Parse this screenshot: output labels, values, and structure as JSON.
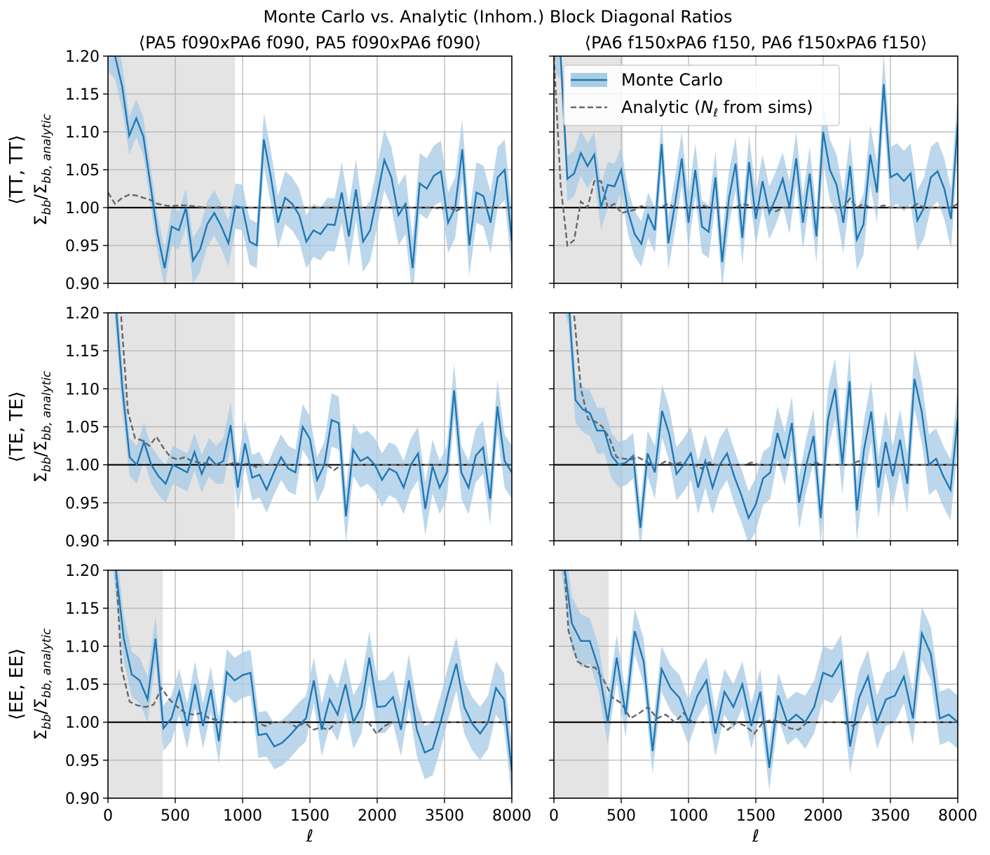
{
  "title": "Monte Carlo vs. Analytic (Inhom.) Block Diagonal Ratios",
  "columns": [
    {
      "title": "⟨PA5 f090xPA6 f090, PA5 f090xPA6 f090⟩"
    },
    {
      "title": "⟨PA6 f150xPA6 f150, PA6 f150xPA6 f150⟩"
    }
  ],
  "rows": [
    {
      "label_main": "⟨TT, TT⟩"
    },
    {
      "label_main": "⟨TE, TE⟩"
    },
    {
      "label_main": "⟨EE, EE⟩"
    }
  ],
  "ylabel": {
    "sigma": "Σ",
    "bb": "bb",
    "slash": "/",
    "sub": "bb, analytic"
  },
  "xlabel": "ℓ",
  "legend": {
    "mc_label": "Monte Carlo",
    "an_label_pre": "Analytic (",
    "an_N": "N",
    "an_sub": "ℓ",
    "an_label_post": " from sims)",
    "placement": "upper right of top-right panel"
  },
  "colors": {
    "mc_line": "#1f77b4",
    "mc_band": "#a9cce5",
    "analytic": "#666666",
    "shade": "#e4e4e4",
    "grid": "#b0b0b0"
  },
  "chart_data": {
    "type": "line",
    "x_ticks": [
      "0",
      "500",
      "1000",
      "1500",
      "2000",
      "3500",
      "8000"
    ],
    "y_ticks": [
      "0.90",
      "0.95",
      "1.00",
      "1.05",
      "1.10",
      "1.15",
      "1.20"
    ],
    "ylim": [
      0.9,
      1.2
    ],
    "xlim_index": [
      0,
      70
    ],
    "reference_line": 1.0,
    "panels": [
      {
        "name": "TT-PA5f090xPA6f090",
        "shade": [
          0,
          22
        ],
        "mc": [
          1.22,
          1.2,
          1.16,
          1.095,
          1.118,
          1.094,
          1.03,
          0.965,
          0.92,
          0.975,
          0.97,
          1.0,
          0.93,
          0.945,
          0.978,
          0.993,
          0.975,
          0.953,
          1.002,
          1.0,
          0.955,
          0.95,
          1.09,
          1.04,
          0.98,
          1.013,
          1.005,
          0.99,
          0.955,
          0.97,
          0.965,
          0.978,
          0.977,
          1.02,
          0.962,
          1.024,
          0.955,
          0.97,
          1.015,
          1.063,
          1.04,
          0.99,
          1.005,
          0.92,
          1.032,
          1.025,
          1.042,
          1.048,
          0.98,
          1.0,
          1.077,
          0.95,
          1.02,
          1.015,
          0.98,
          1.04,
          1.05,
          0.955
        ],
        "err": [
          0.04,
          0.03,
          0.03,
          0.025,
          0.025,
          0.025,
          0.025,
          0.025,
          0.025,
          0.025,
          0.025,
          0.025,
          0.03,
          0.03,
          0.03,
          0.03,
          0.03,
          0.03,
          0.03,
          0.03,
          0.03,
          0.03,
          0.035,
          0.035,
          0.035,
          0.035,
          0.035,
          0.035,
          0.035,
          0.035,
          0.035,
          0.035,
          0.035,
          0.04,
          0.04,
          0.04,
          0.04,
          0.04,
          0.04,
          0.04,
          0.04,
          0.04,
          0.04,
          0.04,
          0.04,
          0.04,
          0.04,
          0.04,
          0.04,
          0.04,
          0.04,
          0.04,
          0.04,
          0.04,
          0.04,
          0.04,
          0.04,
          0.04
        ],
        "analytic": [
          1.02,
          1.005,
          1.013,
          1.017,
          1.016,
          1.013,
          1.01,
          1.005,
          1.003,
          1.002,
          1.003,
          1.003,
          1.002,
          1.001,
          1.0,
          1.0,
          1.001,
          1.0,
          1.0,
          1.0,
          1.0,
          1.0,
          1.0,
          1.0,
          1.0,
          1.0,
          1.0,
          1.0,
          1.0,
          1.0,
          1.0,
          1.0,
          1.0,
          1.0,
          1.0,
          1.0,
          1.0,
          1.0,
          1.0,
          1.0,
          1.0,
          1.0,
          1.0,
          1.0,
          1.0,
          1.0,
          1.0,
          0.998,
          1.002,
          0.995,
          1.0,
          1.0,
          1.0,
          1.0,
          1.0,
          1.0,
          1.0,
          1.0
        ],
        "analytic_start": 0
      },
      {
        "name": "TT-PA6f150xPA6f150",
        "shade": [
          0,
          12
        ],
        "mc": [
          1.22,
          1.2,
          1.038,
          1.045,
          1.072,
          1.055,
          1.07,
          1.0,
          1.03,
          1.028,
          1.05,
          0.995,
          0.965,
          0.952,
          0.99,
          0.97,
          1.084,
          0.953,
          1.005,
          1.065,
          0.98,
          1.05,
          0.975,
          0.968,
          1.04,
          0.928,
          1.012,
          1.058,
          0.96,
          1.06,
          0.985,
          1.035,
          0.993,
          1.013,
          1.038,
          1.0,
          1.065,
          0.98,
          1.045,
          0.962,
          1.1,
          1.05,
          1.03,
          0.98,
          1.055,
          0.958,
          0.978,
          1.07,
          1.02,
          1.163,
          1.04,
          1.045,
          1.035,
          1.045,
          0.983,
          1.0,
          1.04,
          1.048,
          1.025,
          0.985,
          1.112
        ],
        "err": [
          0.04,
          0.03,
          0.03,
          0.03,
          0.03,
          0.03,
          0.03,
          0.03,
          0.03,
          0.03,
          0.03,
          0.03,
          0.03,
          0.03,
          0.03,
          0.03,
          0.035,
          0.035,
          0.035,
          0.035,
          0.035,
          0.035,
          0.035,
          0.035,
          0.035,
          0.035,
          0.035,
          0.035,
          0.035,
          0.035,
          0.035,
          0.035,
          0.035,
          0.035,
          0.035,
          0.035,
          0.035,
          0.035,
          0.035,
          0.035,
          0.04,
          0.04,
          0.04,
          0.04,
          0.04,
          0.04,
          0.04,
          0.04,
          0.04,
          0.04,
          0.04,
          0.04,
          0.04,
          0.04,
          0.04,
          0.04,
          0.04,
          0.04,
          0.04,
          0.04,
          0.04
        ],
        "analytic": [
          1.2,
          1.03,
          0.95,
          0.957,
          1.008,
          1.0,
          1.035,
          1.035,
          1.0,
          1.005,
          0.993,
          0.995,
          0.997,
          1.002,
          1.0,
          1.0,
          1.001,
          1.005,
          1.0,
          1.0,
          1.0,
          1.0,
          1.003,
          1.0,
          1.0,
          1.0,
          1.0,
          1.0,
          1.005,
          1.003,
          0.998,
          1.0,
          1.0,
          0.995,
          1.0,
          1.0,
          1.0,
          1.0,
          1.0,
          1.0,
          1.0,
          1.0,
          1.0,
          1.0,
          1.012,
          1.0,
          1.005,
          1.0,
          1.0,
          1.003,
          1.0,
          1.0,
          1.0,
          1.0,
          1.005,
          1.0,
          1.0,
          1.0,
          1.0,
          1.0,
          1.005
        ],
        "analytic_start": 0
      },
      {
        "name": "TE-PA5f090xPA6f090",
        "shade": [
          0,
          22
        ],
        "mc": [
          1.32,
          1.22,
          1.1,
          1.01,
          1.0,
          1.03,
          1.0,
          0.985,
          0.975,
          1.0,
          0.995,
          0.99,
          1.017,
          0.988,
          1.01,
          1.0,
          1.005,
          1.052,
          0.97,
          1.028,
          0.983,
          0.987,
          0.967,
          0.99,
          1.01,
          0.995,
          0.99,
          1.05,
          1.034,
          0.98,
          1.0,
          1.059,
          1.055,
          0.932,
          1.02,
          1.005,
          1.01,
          1.0,
          0.98,
          0.995,
          0.99,
          0.97,
          1.0,
          1.015,
          0.942,
          0.998,
          0.97,
          0.99,
          1.098,
          0.99,
          0.97,
          1.012,
          1.023,
          0.955,
          1.077,
          1.005,
          0.99
        ],
        "err": [
          0.04,
          0.035,
          0.03,
          0.025,
          0.025,
          0.025,
          0.025,
          0.025,
          0.025,
          0.025,
          0.025,
          0.025,
          0.025,
          0.025,
          0.025,
          0.025,
          0.03,
          0.03,
          0.03,
          0.03,
          0.03,
          0.03,
          0.03,
          0.03,
          0.03,
          0.03,
          0.03,
          0.03,
          0.03,
          0.03,
          0.03,
          0.035,
          0.035,
          0.035,
          0.035,
          0.035,
          0.035,
          0.035,
          0.035,
          0.035,
          0.035,
          0.035,
          0.035,
          0.035,
          0.035,
          0.035,
          0.035,
          0.035,
          0.035,
          0.035,
          0.035,
          0.035,
          0.035,
          0.035,
          0.035,
          0.035,
          0.035
        ],
        "analytic": [
          1.35,
          1.2,
          1.07,
          1.035,
          1.032,
          1.025,
          1.037,
          1.022,
          1.01,
          1.007,
          1.01,
          1.005,
          1.003,
          1.002,
          1.0,
          1.0,
          1.0,
          1.003,
          1.0,
          1.002,
          0.997,
          1.0,
          1.0,
          1.0,
          1.0,
          1.0,
          1.0,
          1.0,
          1.0,
          1.0,
          1.0,
          0.993,
          1.0,
          1.0,
          1.0,
          1.0,
          1.0,
          1.0,
          1.0,
          1.0,
          1.0,
          1.0,
          1.0,
          1.0,
          1.0,
          1.0,
          1.0,
          1.0,
          1.0,
          1.0,
          1.0,
          1.0,
          1.0,
          1.0,
          1.0,
          1.0,
          1.0
        ],
        "analytic_start": 1
      },
      {
        "name": "TE-PA6f150xPA6f150",
        "shade": [
          0,
          12
        ],
        "mc": [
          1.3,
          1.25,
          1.22,
          1.085,
          1.073,
          1.068,
          1.045,
          1.045,
          1.012,
          1.0,
          1.003,
          1.012,
          0.917,
          1.015,
          0.99,
          1.071,
          1.04,
          0.988,
          1.0,
          1.015,
          0.97,
          1.005,
          0.97,
          1.0,
          1.015,
          0.985,
          0.96,
          0.93,
          0.948,
          0.982,
          0.99,
          1.042,
          1.008,
          1.055,
          0.95,
          1.0,
          1.038,
          0.93,
          1.06,
          1.1,
          1.0,
          1.11,
          0.94,
          1.02,
          1.07,
          0.97,
          1.03,
          0.985,
          1.033,
          0.975,
          1.113,
          1.07,
          1.0,
          1.008,
          0.985,
          0.967,
          1.062
        ],
        "err": [
          0.04,
          0.035,
          0.035,
          0.03,
          0.03,
          0.03,
          0.03,
          0.03,
          0.03,
          0.03,
          0.03,
          0.03,
          0.03,
          0.03,
          0.035,
          0.035,
          0.035,
          0.035,
          0.035,
          0.035,
          0.035,
          0.035,
          0.035,
          0.035,
          0.035,
          0.035,
          0.035,
          0.035,
          0.035,
          0.035,
          0.035,
          0.035,
          0.035,
          0.035,
          0.035,
          0.035,
          0.035,
          0.035,
          0.04,
          0.04,
          0.04,
          0.04,
          0.04,
          0.04,
          0.04,
          0.04,
          0.04,
          0.04,
          0.04,
          0.04,
          0.04,
          0.04,
          0.04,
          0.04,
          0.04,
          0.04,
          0.04
        ],
        "analytic": [
          1.35,
          1.25,
          1.2,
          1.1,
          1.06,
          1.057,
          1.05,
          1.035,
          1.01,
          1.008,
          1.007,
          1.01,
          1.005,
          1.0,
          1.0,
          1.005,
          1.0,
          1.003,
          1.0,
          1.0,
          0.995,
          1.003,
          1.0,
          1.0,
          1.0,
          1.0,
          1.0,
          1.003,
          1.0,
          1.0,
          1.0,
          1.0,
          1.0,
          1.0,
          1.0,
          1.0,
          1.003,
          1.0,
          1.0,
          1.0,
          1.0,
          1.0,
          1.005,
          1.0,
          1.0,
          1.0,
          1.0,
          1.0,
          1.0,
          1.0,
          1.0,
          1.0,
          1.0,
          1.0,
          1.0,
          1.0,
          1.0
        ],
        "analytic_start": 1
      },
      {
        "name": "EE-PA5f090xPA6f090",
        "shade": [
          0,
          9.5
        ],
        "mc": [
          1.3,
          1.2,
          1.11,
          1.063,
          1.055,
          1.03,
          1.11,
          0.992,
          1.005,
          1.04,
          0.995,
          1.05,
          0.995,
          1.043,
          0.975,
          1.066,
          1.055,
          1.062,
          1.065,
          0.983,
          0.985,
          0.968,
          0.973,
          0.983,
          0.995,
          1.005,
          1.055,
          0.99,
          1.03,
          1.01,
          1.05,
          1.0,
          1.02,
          1.085,
          1.02,
          1.021,
          1.033,
          0.99,
          1.055,
          0.99,
          0.96,
          0.965,
          1.0,
          1.04,
          1.077,
          1.02,
          0.998,
          0.985,
          1.0,
          1.045,
          1.03,
          0.935
        ],
        "err": [
          0.04,
          0.035,
          0.03,
          0.03,
          0.03,
          0.03,
          0.03,
          0.03,
          0.03,
          0.03,
          0.03,
          0.03,
          0.03,
          0.03,
          0.03,
          0.03,
          0.03,
          0.03,
          0.03,
          0.03,
          0.03,
          0.03,
          0.03,
          0.03,
          0.03,
          0.03,
          0.03,
          0.035,
          0.035,
          0.035,
          0.035,
          0.035,
          0.035,
          0.035,
          0.035,
          0.035,
          0.035,
          0.035,
          0.035,
          0.035,
          0.035,
          0.035,
          0.035,
          0.035,
          0.035,
          0.035,
          0.035,
          0.035,
          0.035,
          0.035,
          0.035,
          0.035
        ],
        "analytic": [
          1.25,
          1.07,
          1.027,
          1.022,
          1.02,
          1.023,
          1.045,
          1.03,
          1.02,
          1.012,
          1.01,
          1.012,
          1.005,
          1.003,
          1.0,
          1.0,
          1.0,
          1.0,
          1.0,
          0.995,
          1.0,
          1.0,
          1.0,
          0.993,
          1.0,
          0.99,
          0.993,
          0.99,
          1.0,
          1.0,
          1.0,
          1.0,
          1.0,
          0.985,
          0.995,
          1.0,
          1.0,
          1.0,
          1.0,
          1.0,
          1.0,
          1.0,
          1.0,
          1.0,
          1.0,
          1.0,
          1.0,
          1.0,
          1.0,
          1.0,
          1.0
        ],
        "analytic_start": 1
      },
      {
        "name": "EE-PA6f150xPA6f150",
        "shade": [
          0,
          9.5
        ],
        "mc": [
          1.3,
          1.22,
          1.13,
          1.107,
          1.107,
          1.07,
          1.0,
          1.085,
          1.01,
          1.12,
          1.08,
          0.962,
          1.07,
          1.045,
          1.032,
          1.0,
          1.035,
          1.055,
          0.985,
          1.04,
          1.02,
          1.05,
          0.995,
          1.04,
          0.94,
          1.035,
          1.0,
          1.01,
          1.0,
          1.02,
          1.065,
          1.06,
          1.08,
          0.968,
          1.032,
          1.06,
          1.0,
          1.03,
          1.035,
          1.06,
          1.005,
          1.117,
          1.09,
          1.005,
          1.01,
          1.0
        ],
        "err": [
          0.04,
          0.035,
          0.035,
          0.035,
          0.03,
          0.03,
          0.03,
          0.03,
          0.03,
          0.03,
          0.03,
          0.03,
          0.03,
          0.03,
          0.03,
          0.03,
          0.03,
          0.03,
          0.03,
          0.03,
          0.03,
          0.03,
          0.03,
          0.03,
          0.03,
          0.03,
          0.03,
          0.03,
          0.035,
          0.035,
          0.035,
          0.035,
          0.035,
          0.035,
          0.035,
          0.035,
          0.035,
          0.035,
          0.035,
          0.035,
          0.035,
          0.035,
          0.035,
          0.035,
          0.035,
          0.035
        ],
        "analytic": [
          1.3,
          1.12,
          1.08,
          1.073,
          1.072,
          1.055,
          1.032,
          1.025,
          1.005,
          1.012,
          1.02,
          1.005,
          1.01,
          1.0,
          1.012,
          1.0,
          1.0,
          1.0,
          1.0,
          0.99,
          1.0,
          0.995,
          0.985,
          1.0,
          1.003,
          1.0,
          0.992,
          0.99,
          1.0,
          1.0,
          1.0,
          1.0,
          1.0,
          0.995,
          1.0,
          1.0,
          1.0,
          1.0,
          1.0,
          1.0,
          1.0,
          1.0,
          1.0,
          1.0,
          1.0,
          1.0
        ],
        "analytic_start": 1
      }
    ]
  }
}
